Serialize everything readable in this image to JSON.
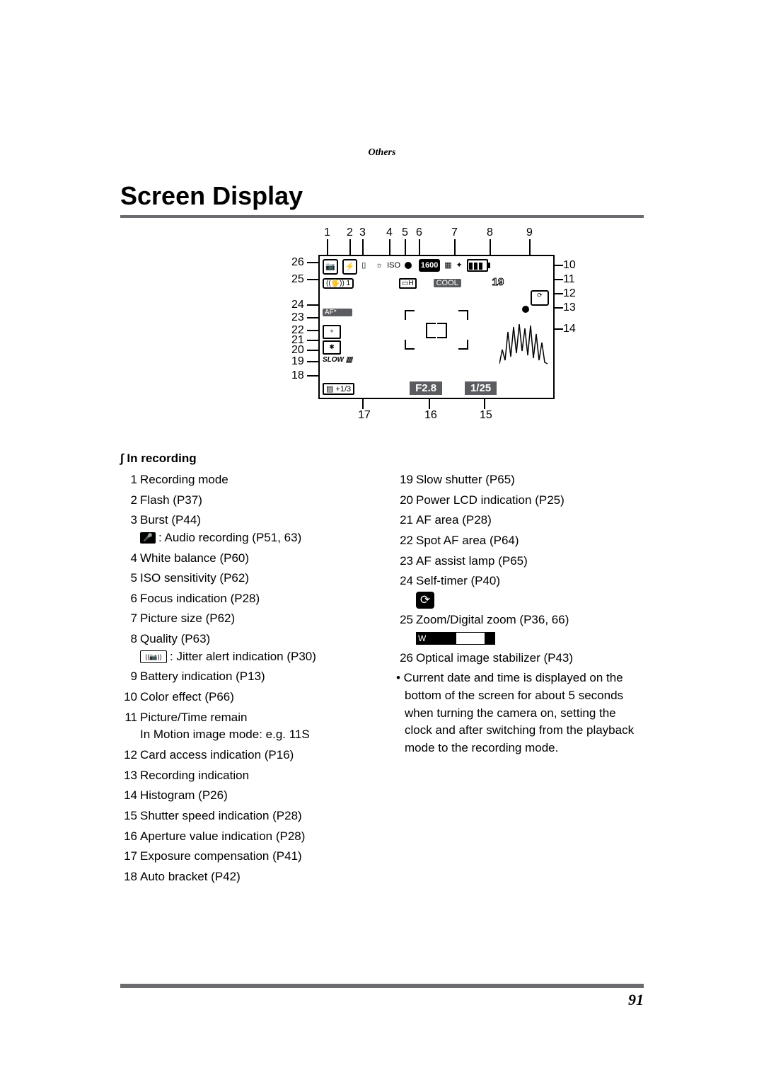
{
  "section_label": "Others",
  "title": "Screen Display",
  "page_number": "91",
  "subhead": "∫ In recording",
  "diagram": {
    "top_numbers": [
      "1",
      "2",
      "3",
      "4",
      "5",
      "6",
      "7",
      "8",
      "9"
    ],
    "left_numbers": [
      "26",
      "25",
      "24",
      "23",
      "22",
      "21",
      "20",
      "19",
      "18"
    ],
    "right_numbers": [
      "10",
      "11",
      "12",
      "13",
      "14"
    ],
    "bottom_numbers": [
      "17",
      "16",
      "15"
    ],
    "iso_label": "ISO",
    "pict_size": "1600",
    "cool": "COOL",
    "remain": "19",
    "afstar": "AF*",
    "slow": "SLOW",
    "expcomp": "▤ +1/3",
    "aperture": "F2.8",
    "shutter": "1/25",
    "stabilizer": "((🖐)) 1",
    "quality": "▭H",
    "hist_color": "#5a5c60"
  },
  "left_col": [
    {
      "n": "1",
      "t": "Recording mode"
    },
    {
      "n": "2",
      "t": "Flash (P37)"
    },
    {
      "n": "3",
      "t": "Burst (P44)",
      "sub_icon": "mic",
      "sub": ": Audio recording (P51, 63)"
    },
    {
      "n": "4",
      "t": "White balance (P60)"
    },
    {
      "n": "5",
      "t": "ISO sensitivity (P62)"
    },
    {
      "n": "6",
      "t": "Focus indication (P28)"
    },
    {
      "n": "7",
      "t": "Picture size (P62)"
    },
    {
      "n": "8",
      "t": "Quality (P63)",
      "sub_icon": "jitter",
      "sub": ": Jitter alert indication (P30)"
    },
    {
      "n": "9",
      "t": "Battery indication (P13)"
    },
    {
      "n": "10",
      "t": "Color effect (P66)"
    },
    {
      "n": "11",
      "t": "Picture/Time remain",
      "sub_plain": "In Motion image mode:  e.g. 11S"
    },
    {
      "n": "12",
      "t": "Card access indication (P16)"
    },
    {
      "n": "13",
      "t": "Recording indication"
    },
    {
      "n": "14",
      "t": "Histogram (P26)"
    },
    {
      "n": "15",
      "t": "Shutter speed indication (P28)"
    },
    {
      "n": "16",
      "t": "Aperture value indication (P28)"
    },
    {
      "n": "17",
      "t": "Exposure compensation (P41)"
    },
    {
      "n": "18",
      "t": "Auto bracket (P42)"
    }
  ],
  "right_col": [
    {
      "n": "19",
      "t": "Slow shutter (P65)"
    },
    {
      "n": "20",
      "t": "Power LCD indication (P25)"
    },
    {
      "n": "21",
      "t": "AF area (P28)"
    },
    {
      "n": "22",
      "t": "Spot AF area (P64)"
    },
    {
      "n": "23",
      "t": "AF assist lamp (P65)"
    },
    {
      "n": "24",
      "t": "Self-timer (P40)",
      "after": "selftimer"
    },
    {
      "n": "25",
      "t": "Zoom/Digital zoom (P36, 66)",
      "after": "zoom"
    },
    {
      "n": "26",
      "t": "Optical image stabilizer (P43)"
    }
  ],
  "note": "• Current date and time is displayed on the bottom of the screen for about 5 seconds when turning the camera on, setting the clock and after switching from the playback mode to the recording mode."
}
